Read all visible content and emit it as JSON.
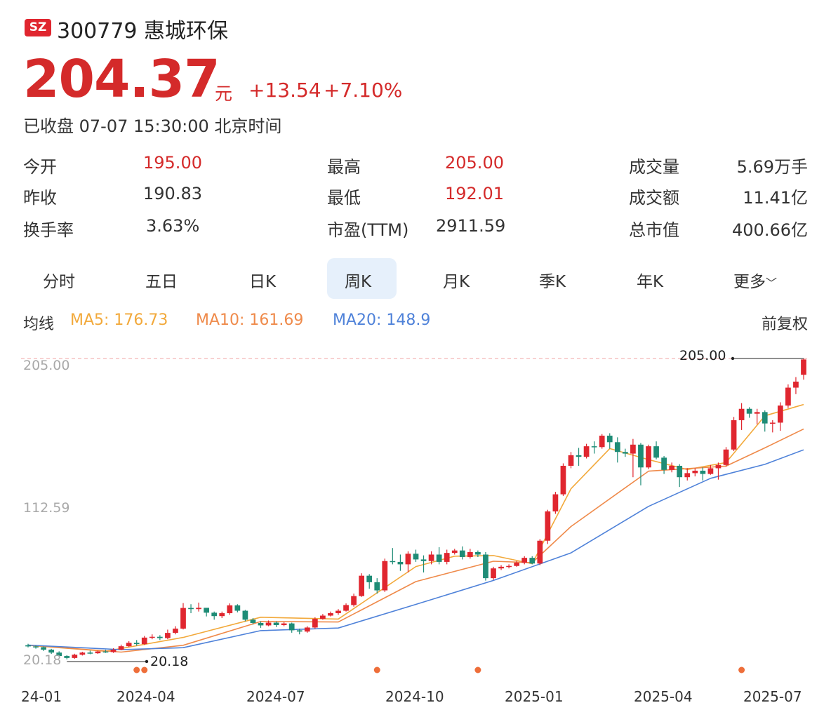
{
  "header": {
    "exchange_badge": "SZ",
    "title": "300779 惠城环保",
    "price": "204.37",
    "unit": "元",
    "change": "+13.54",
    "change_pct": "+7.10%",
    "status": "已收盘 07-07 15:30:00 北京时间"
  },
  "stats": [
    {
      "label": "今开",
      "value": "195.00",
      "color": "red"
    },
    {
      "label": "昨收",
      "value": "190.83",
      "color": "dark"
    },
    {
      "label": "换手率",
      "value": "3.63%",
      "color": "dark"
    },
    {
      "label": "最高",
      "value": "205.00",
      "color": "red"
    },
    {
      "label": "最低",
      "value": "192.01",
      "color": "red"
    },
    {
      "label": "市盈(TTM)",
      "value": "2911.59",
      "color": "dark"
    },
    {
      "label": "成交量",
      "value": "5.69万手",
      "color": "dark"
    },
    {
      "label": "成交额",
      "value": "11.41亿",
      "color": "dark"
    },
    {
      "label": "总市值",
      "value": "400.66亿",
      "color": "dark"
    }
  ],
  "tabs": [
    "分时",
    "五日",
    "日K",
    "周K",
    "月K",
    "季K",
    "年K",
    "更多"
  ],
  "active_tab": "周K",
  "more_chevron": "chevron-down-icon",
  "ma_bar": {
    "label": "均线",
    "ma5": "MA5: 176.73",
    "ma10": "MA10: 161.69",
    "ma20": "MA20: 148.9",
    "adjust": "前复权"
  },
  "colors": {
    "up": "#e0262f",
    "down": "#1e8c76",
    "ma5": "#f2a93b",
    "ma10": "#ef8a4a",
    "ma20": "#4f82d9",
    "event_dot": "#ee6e3a"
  },
  "chart_data": {
    "type": "candlestick",
    "y_axis_labels": [
      "205.00",
      "112.59",
      "20.18"
    ],
    "ylim": [
      20.18,
      205.0
    ],
    "x_tick_labels": [
      "24-01",
      "2024-04",
      "2024-07",
      "2024-10",
      "2025-01",
      "2025-04",
      "2025-07"
    ],
    "high_marker": "205.00",
    "low_marker": "20.18",
    "candles": [
      [
        null,
        28.9,
        28.2,
        29.8,
        27.6
      ],
      [
        null,
        28.2,
        27.7,
        28.8,
        26.8
      ],
      [
        null,
        27.7,
        26.2,
        28.1,
        25.4
      ],
      [
        null,
        26.2,
        24.4,
        26.7,
        23.6
      ],
      [
        null,
        24.4,
        22.3,
        25.2,
        21.8
      ],
      [
        null,
        22.3,
        21.1,
        22.8,
        20.2
      ],
      [
        null,
        21.1,
        23.1,
        23.7,
        20.6
      ],
      [
        null,
        23.1,
        24.4,
        24.9,
        22.6
      ],
      [
        null,
        24.4,
        24.0,
        25.6,
        23.4
      ],
      [
        null,
        24.0,
        25.1,
        25.6,
        23.6
      ],
      [
        null,
        25.1,
        24.7,
        26.1,
        24.2
      ],
      [
        null,
        24.7,
        26.2,
        27.1,
        24.2
      ],
      [
        null,
        26.2,
        28.3,
        29.3,
        25.8
      ],
      [
        null,
        28.3,
        30.4,
        31.4,
        27.8
      ],
      [
        null,
        30.4,
        29.6,
        32.1,
        28.6
      ],
      [
        null,
        29.6,
        33.6,
        34.6,
        29.1
      ],
      [
        null,
        33.6,
        34.1,
        35.6,
        32.6
      ],
      [
        null,
        34.1,
        33.3,
        35.1,
        32.1
      ],
      [
        null,
        33.3,
        36.5,
        38.5,
        32.6
      ],
      [
        null,
        36.5,
        39.1,
        40.6,
        35.6
      ],
      [
        null,
        39.1,
        51.8,
        54.8,
        38.6
      ],
      [
        null,
        51.8,
        51.1,
        54.1,
        48.6
      ],
      [
        null,
        51.1,
        51.9,
        55.1,
        49.6
      ],
      [
        null,
        51.9,
        48.9,
        51.1,
        46.6
      ],
      [
        null,
        48.9,
        46.8,
        49.6,
        44.6
      ],
      [
        null,
        46.8,
        48.6,
        49.6,
        45.6
      ],
      [
        null,
        48.6,
        53.4,
        54.6,
        47.6
      ],
      [
        null,
        53.4,
        50.1,
        54.1,
        49.1
      ],
      [
        null,
        50.1,
        44.6,
        50.6,
        43.6
      ],
      [
        null,
        44.6,
        42.6,
        45.6,
        41.6
      ],
      [
        null,
        42.6,
        41.1,
        43.6,
        39.6
      ],
      [
        null,
        41.1,
        42.8,
        44.1,
        40.6
      ],
      [
        null,
        42.8,
        41.3,
        43.6,
        40.1
      ],
      [
        null,
        41.3,
        42.3,
        43.1,
        40.6
      ],
      [
        null,
        42.3,
        38.1,
        42.8,
        36.6
      ],
      [
        null,
        38.1,
        37.3,
        39.1,
        35.6
      ],
      [
        null,
        37.3,
        39.8,
        40.6,
        36.6
      ],
      [
        null,
        39.8,
        45.1,
        46.1,
        39.1
      ],
      [
        null,
        45.1,
        47.1,
        48.1,
        44.6
      ],
      [
        null,
        47.1,
        48.6,
        49.6,
        46.6
      ],
      [
        null,
        48.6,
        50.1,
        51.1,
        47.6
      ],
      [
        null,
        50.1,
        53.6,
        54.6,
        49.6
      ],
      [
        null,
        53.6,
        59.1,
        60.6,
        52.6
      ],
      [
        null,
        59.1,
        71.6,
        73.1,
        58.6
      ],
      [
        null,
        71.6,
        67.6,
        72.6,
        63.6
      ],
      [
        null,
        67.6,
        62.6,
        70.1,
        60.6
      ],
      [
        null,
        62.6,
        80.6,
        82.1,
        61.6
      ],
      [
        null,
        80.6,
        80.1,
        88.6,
        78.6
      ],
      [
        null,
        80.1,
        78.6,
        84.6,
        74.6
      ],
      [
        null,
        78.6,
        85.1,
        86.6,
        73.6
      ],
      [
        null,
        85.1,
        81.6,
        87.6,
        80.1
      ],
      [
        null,
        81.6,
        80.6,
        84.1,
        73.6
      ],
      [
        null,
        80.6,
        84.6,
        86.6,
        78.6
      ],
      [
        null,
        84.6,
        80.1,
        89.1,
        78.6
      ],
      [
        null,
        80.1,
        85.6,
        87.6,
        78.6
      ],
      [
        null,
        85.6,
        87.1,
        88.1,
        84.6
      ],
      [
        null,
        87.1,
        83.1,
        89.6,
        81.6
      ],
      [
        null,
        83.1,
        86.1,
        88.1,
        82.1
      ],
      [
        null,
        86.1,
        84.6,
        87.1,
        83.1
      ],
      [
        null,
        84.6,
        70.1,
        86.1,
        68.6
      ],
      [
        null,
        70.1,
        76.1,
        77.1,
        69.1
      ],
      [
        null,
        76.1,
        77.1,
        78.1,
        75.1
      ],
      [
        null,
        77.1,
        77.6,
        78.6,
        76.1
      ],
      [
        null,
        77.6,
        79.6,
        80.6,
        77.1
      ],
      [
        null,
        79.6,
        82.6,
        83.6,
        78.6
      ],
      [
        null,
        82.6,
        79.1,
        83.6,
        78.6
      ],
      [
        null,
        79.1,
        93.1,
        94.1,
        78.1
      ],
      [
        null,
        93.1,
        111.1,
        112.1,
        91.1
      ],
      [
        null,
        111.1,
        121.6,
        123.1,
        109.6
      ],
      [
        null,
        121.6,
        139.1,
        140.6,
        120.6
      ],
      [
        null,
        139.1,
        145.6,
        147.6,
        137.6
      ],
      [
        null,
        145.6,
        144.6,
        150.1,
        139.1
      ],
      [
        null,
        144.6,
        151.1,
        152.6,
        143.6
      ],
      [
        null,
        151.1,
        150.6,
        154.1,
        146.6
      ],
      [
        null,
        150.6,
        157.6,
        158.6,
        149.6
      ],
      [
        null,
        157.6,
        153.6,
        159.1,
        149.6
      ],
      [
        null,
        153.6,
        147.6,
        156.6,
        141.1
      ],
      [
        null,
        147.6,
        146.6,
        149.6,
        144.6
      ],
      [
        null,
        146.6,
        152.1,
        155.6,
        132.1
      ],
      [
        null,
        152.1,
        138.1,
        153.1,
        127.1
      ],
      [
        null,
        138.1,
        151.1,
        152.1,
        137.1
      ],
      [
        null,
        151.1,
        144.1,
        154.1,
        143.1
      ],
      [
        null,
        144.1,
        136.6,
        145.1,
        134.1
      ],
      [
        null,
        136.6,
        139.1,
        141.1,
        135.1
      ],
      [
        null,
        139.1,
        132.1,
        140.1,
        126.1
      ],
      [
        null,
        132.1,
        134.6,
        137.6,
        130.1
      ],
      [
        null,
        134.6,
        136.1,
        137.6,
        132.6
      ],
      [
        null,
        136.1,
        134.1,
        138.1,
        130.1
      ],
      [
        null,
        134.1,
        137.6,
        139.6,
        133.6
      ],
      [
        null,
        137.6,
        139.6,
        141.1,
        130.6
      ],
      [
        null,
        139.6,
        149.1,
        150.6,
        138.6
      ],
      [
        null,
        149.1,
        167.1,
        169.1,
        148.1
      ],
      [
        null,
        167.1,
        174.1,
        177.6,
        161.1
      ],
      [
        null,
        174.1,
        171.1,
        175.1,
        168.6
      ],
      [
        null,
        171.1,
        172.1,
        174.1,
        164.6
      ],
      [
        null,
        172.1,
        165.1,
        173.1,
        160.1
      ],
      [
        null,
        165.1,
        165.6,
        167.1,
        159.6
      ],
      [
        null,
        165.6,
        176.1,
        178.1,
        160.6
      ],
      [
        null,
        176.1,
        187.1,
        189.1,
        174.6
      ],
      [
        null,
        187.1,
        190.8,
        193.6,
        183.1
      ],
      [
        null,
        195.0,
        204.4,
        205.0,
        192.0
      ]
    ],
    "ma_series": [
      {
        "name": "MA5",
        "points": [
          [
            0,
            28.9
          ],
          [
            10,
            25.2
          ],
          [
            20,
            33.7
          ],
          [
            30,
            46.1
          ],
          [
            40,
            45.0
          ],
          [
            50,
            77.2
          ],
          [
            55,
            83.6
          ],
          [
            60,
            84.0
          ],
          [
            65,
            79.0
          ],
          [
            70,
            125.0
          ],
          [
            75,
            149.7
          ],
          [
            80,
            142.9
          ],
          [
            85,
            136.8
          ],
          [
            90,
            141.1
          ],
          [
            95,
            169.8
          ],
          [
            100,
            176.73
          ]
        ]
      },
      {
        "name": "MA10",
        "points": [
          [
            0,
            29.0
          ],
          [
            12,
            24.7
          ],
          [
            20,
            28.9
          ],
          [
            30,
            43.5
          ],
          [
            40,
            43.2
          ],
          [
            50,
            68.0
          ],
          [
            60,
            80.5
          ],
          [
            65,
            79.6
          ],
          [
            70,
            101.8
          ],
          [
            80,
            135.8
          ],
          [
            90,
            138.9
          ],
          [
            95,
            150.1
          ],
          [
            100,
            161.69
          ]
        ]
      },
      {
        "name": "MA20",
        "points": [
          [
            0,
            29.0
          ],
          [
            12,
            26.2
          ],
          [
            20,
            27.4
          ],
          [
            30,
            37.9
          ],
          [
            40,
            39.5
          ],
          [
            50,
            54.0
          ],
          [
            60,
            68.7
          ],
          [
            70,
            85.6
          ],
          [
            80,
            114.2
          ],
          [
            88,
            131.4
          ],
          [
            95,
            140.0
          ],
          [
            100,
            148.9
          ]
        ]
      }
    ],
    "event_markers": [
      14,
      15,
      45,
      58,
      92
    ]
  }
}
